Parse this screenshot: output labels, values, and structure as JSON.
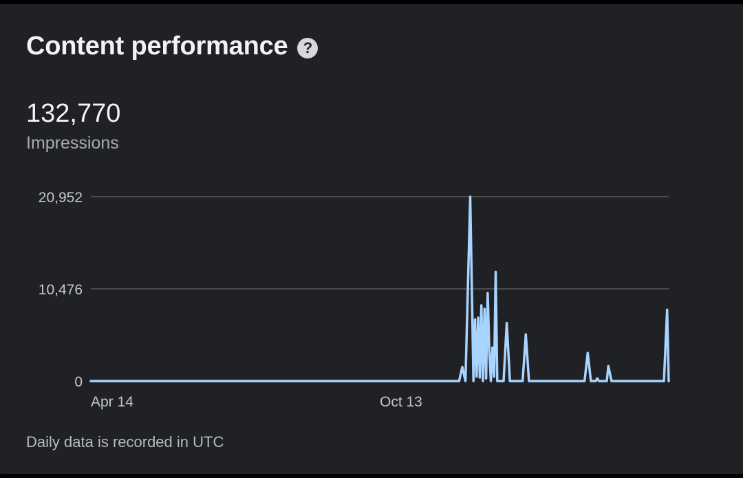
{
  "card": {
    "title": "Content performance",
    "help_icon": "help-circle-icon",
    "metric": {
      "value": "132,770",
      "label": "Impressions"
    },
    "footnote": "Daily data is recorded in UTC"
  },
  "colors": {
    "background": "#202124",
    "line": "#a8d4ff",
    "gridline": "#5f6368",
    "tick_text": "#c4c7c9"
  },
  "chart_data": {
    "type": "line",
    "title": "",
    "xlabel": "",
    "ylabel": "",
    "ylim": [
      0,
      20952
    ],
    "yticks": [
      {
        "value": 20952,
        "label": "20,952"
      },
      {
        "value": 10476,
        "label": "10,476"
      },
      {
        "value": 0,
        "label": "0"
      }
    ],
    "xticks": [
      {
        "x": 0,
        "label": "Apr 14"
      },
      {
        "x": 182,
        "label": "Oct 13"
      }
    ],
    "xlim": [
      0,
      364
    ],
    "grid": true,
    "series": [
      {
        "name": "",
        "values": [
          [
            0,
            0
          ],
          [
            232,
            0
          ],
          [
            234,
            1600
          ],
          [
            236,
            0
          ],
          [
            239,
            20952
          ],
          [
            241,
            0
          ],
          [
            242,
            7000
          ],
          [
            243,
            500
          ],
          [
            244,
            7200
          ],
          [
            245,
            400
          ],
          [
            246,
            8600
          ],
          [
            247,
            0
          ],
          [
            248,
            8200
          ],
          [
            249,
            300
          ],
          [
            250,
            10000
          ],
          [
            251,
            3500
          ],
          [
            252,
            0
          ],
          [
            253,
            3800
          ],
          [
            254,
            500
          ],
          [
            255,
            12400
          ],
          [
            256,
            0
          ],
          [
            260,
            0
          ],
          [
            262,
            6600
          ],
          [
            264,
            0
          ],
          [
            272,
            0
          ],
          [
            274,
            5300
          ],
          [
            276,
            0
          ],
          [
            311,
            0
          ],
          [
            313,
            3200
          ],
          [
            315,
            0
          ],
          [
            318,
            0
          ],
          [
            319,
            300
          ],
          [
            320,
            0
          ],
          [
            325,
            0
          ],
          [
            326,
            1700
          ],
          [
            328,
            0
          ],
          [
            361,
            0
          ],
          [
            363,
            8100
          ],
          [
            364,
            0
          ]
        ]
      }
    ]
  }
}
